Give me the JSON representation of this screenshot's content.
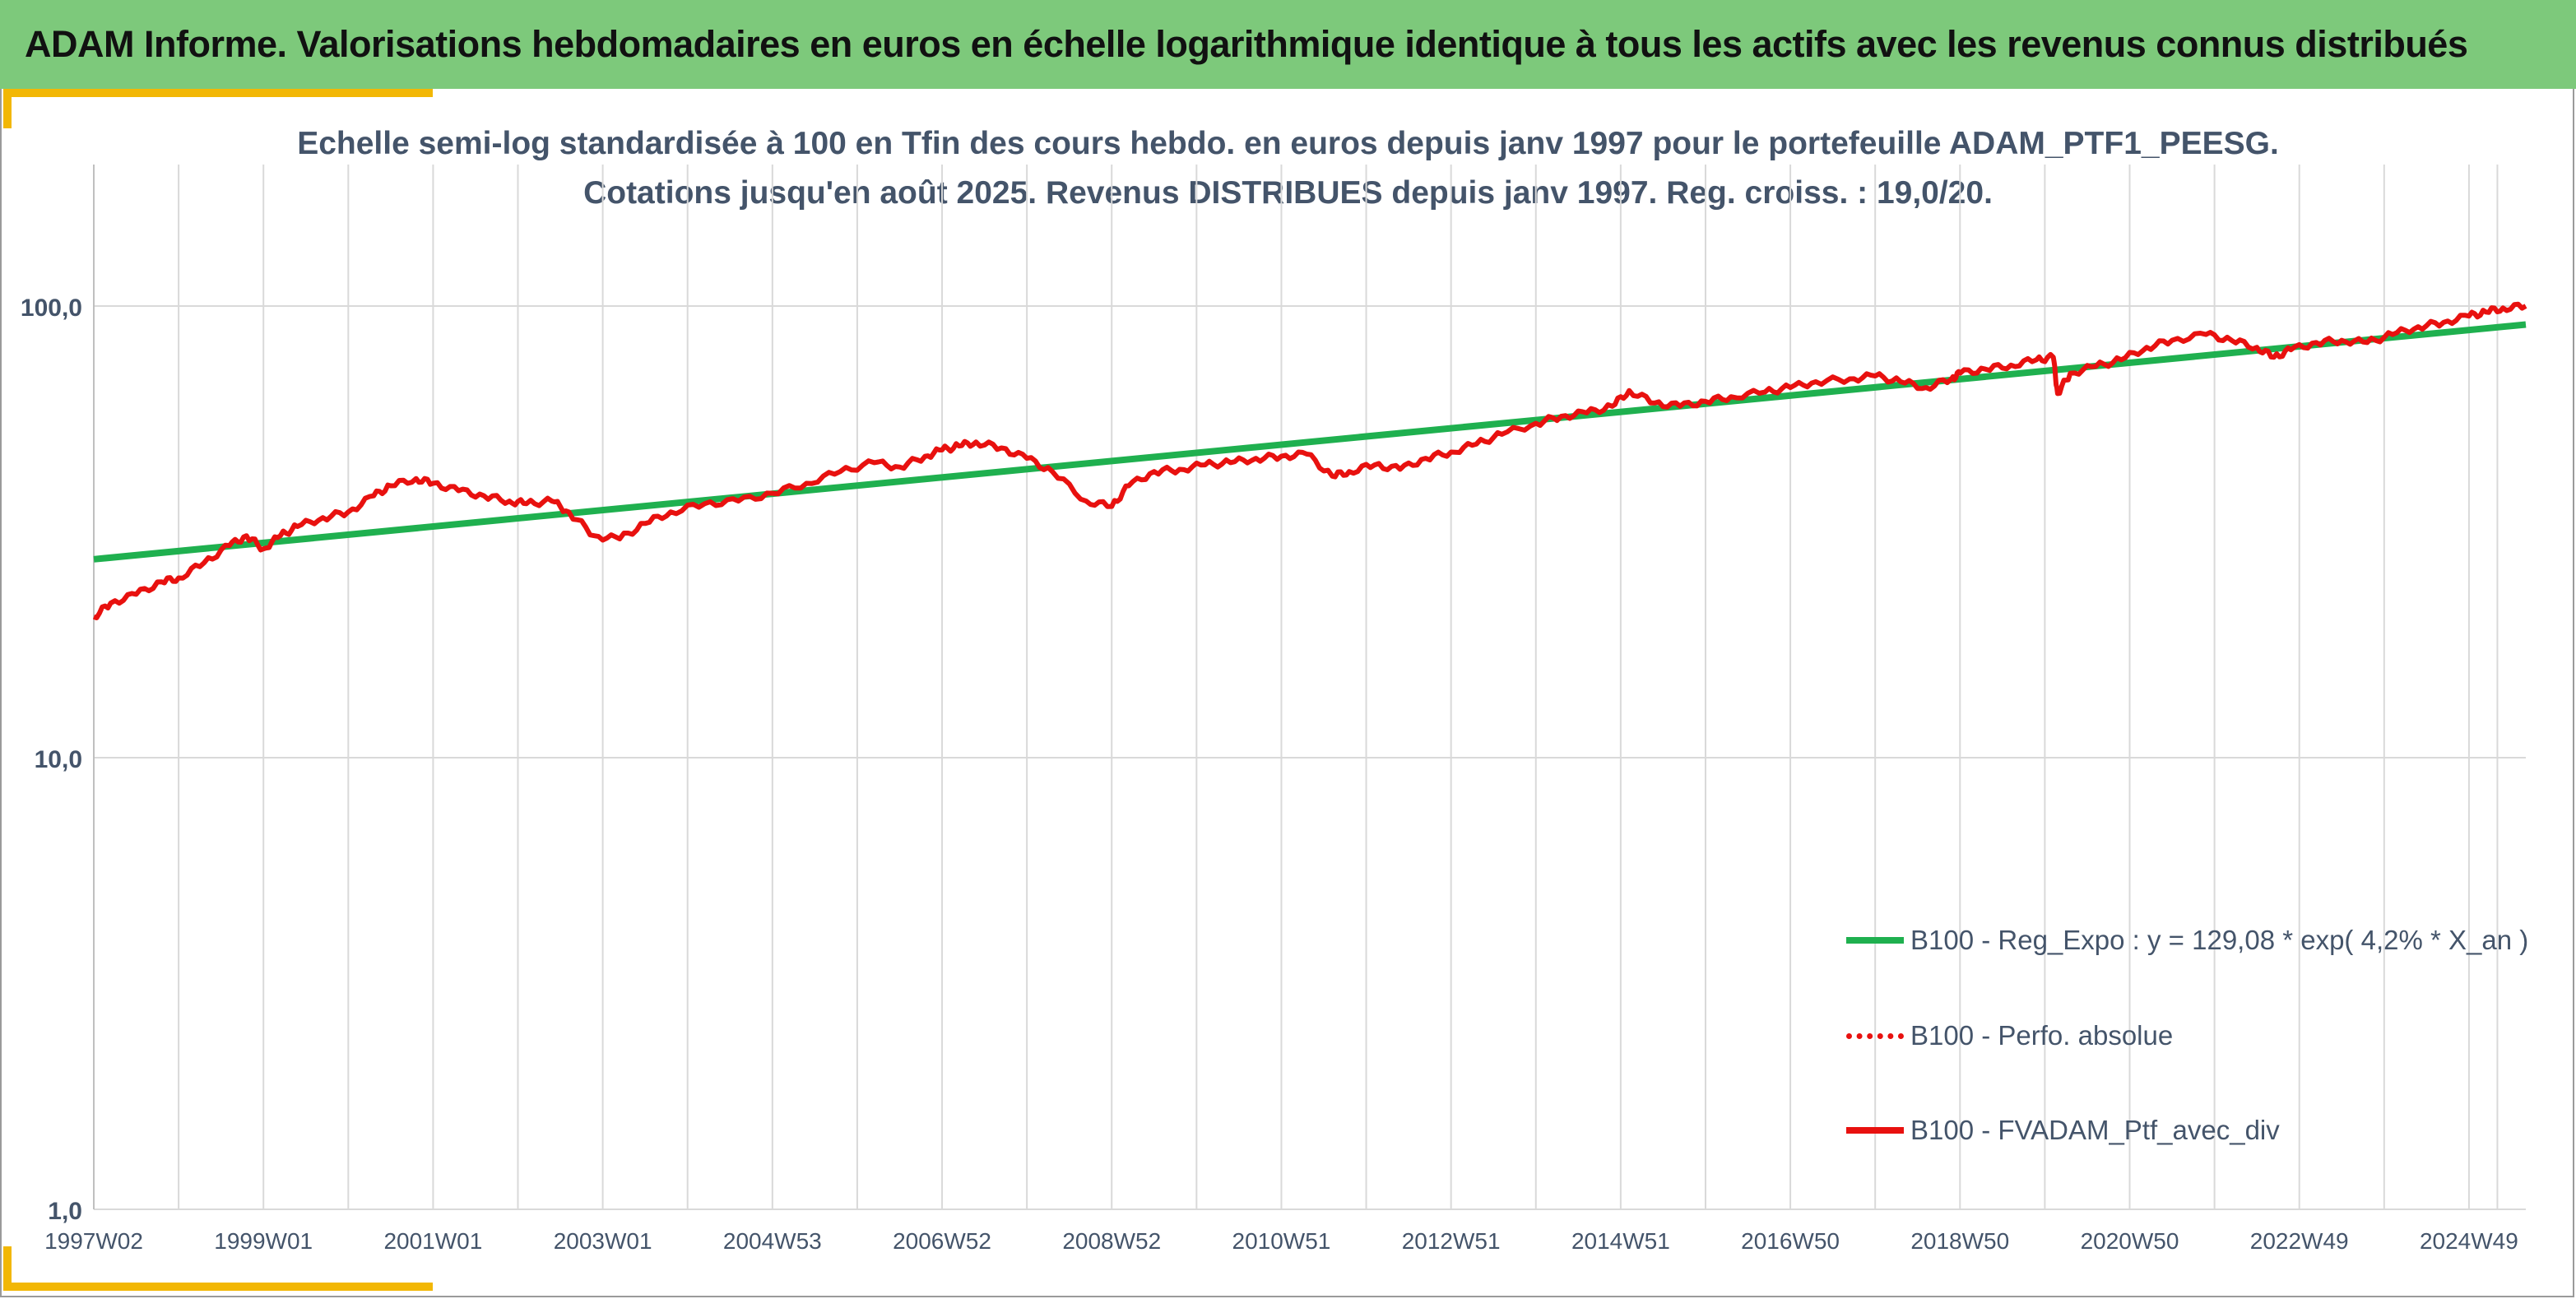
{
  "banner": {
    "title": "ADAM Informe. Valorisations hebdomadaires en euros en échelle logarithmique identique à tous les actifs avec les revenus connus distribués"
  },
  "colors": {
    "banner_bg": "#7dc97b",
    "accent_corner": "#f2b705",
    "regression": "#1fb04f",
    "portfolio": "#e8110f",
    "text": "#44546a",
    "grid": "#d9d9d9"
  },
  "chart_data": {
    "type": "line",
    "title": "Echelle semi-log standardisée à 100 en Tfin des cours hebdo. en euros depuis janv 1997 pour le portefeuille ADAM_PTF1_PEESG.",
    "subtitle": "Cotations jusqu'en août 2025. Revenus DISTRIBUES depuis janv 1997. Reg. croiss. : 19,0/20.",
    "xlabel": "",
    "ylabel": "",
    "yscale": "log",
    "ylim": [
      1,
      200
    ],
    "xlim": [
      1997.0,
      2025.67
    ],
    "grid": true,
    "legend_position": "bottom-right",
    "y_ticks": [
      1.0,
      10.0,
      100.0
    ],
    "y_tick_labels": [
      "1,0",
      "10,0",
      "100,0"
    ],
    "x_ticks": [
      1997.0,
      1999.0,
      2001.0,
      2003.0,
      2005.0,
      2007.0,
      2009.0,
      2011.0,
      2013.0,
      2015.0,
      2017.0,
      2019.0,
      2021.0,
      2023.0,
      2025.0
    ],
    "x_tick_labels": [
      "1997W02",
      "1999W01",
      "2001W01",
      "2003W01",
      "2004W53",
      "2006W52",
      "2008W52",
      "2010W51",
      "2012W51",
      "2014W51",
      "2016W50",
      "2018W50",
      "2020W50",
      "2022W49",
      "2024W49"
    ],
    "series": [
      {
        "name": "B100 - Reg_Expo : y = 129,08 * exp( 4,2% *  X_an )",
        "color": "#1fb04f",
        "style": "solid",
        "x": [
          1997.0,
          2025.67
        ],
        "values": [
          27.5,
          91.0
        ]
      },
      {
        "name": "B100 - Perfo. absolue",
        "color": "#e8110f",
        "style": "dotted",
        "x": [],
        "values": []
      },
      {
        "name": "B100 - FVADAM_Ptf_avec_div",
        "color": "#e8110f",
        "style": "solid",
        "x": [
          1997.0,
          1997.2,
          1997.5,
          1997.8,
          1998.0,
          1998.3,
          1998.6,
          1998.8,
          1999.0,
          1999.2,
          1999.4,
          1999.7,
          2000.0,
          2000.3,
          2000.5,
          2000.8,
          2001.0,
          2001.3,
          2001.6,
          2001.9,
          2002.1,
          2002.4,
          2002.6,
          2002.9,
          2003.2,
          2003.5,
          2003.8,
          2004.2,
          2004.6,
          2005.0,
          2005.4,
          2005.8,
          2006.2,
          2006.5,
          2006.8,
          2007.0,
          2007.2,
          2007.4,
          2007.7,
          2008.0,
          2008.3,
          2008.7,
          2009.0,
          2009.2,
          2009.5,
          2009.8,
          2010.1,
          2010.4,
          2010.7,
          2011.0,
          2011.3,
          2011.6,
          2011.8,
          2012.1,
          2012.4,
          2012.7,
          2013.0,
          2013.3,
          2013.6,
          2014.0,
          2014.3,
          2014.6,
          2014.9,
          2015.1,
          2015.4,
          2015.7,
          2016.0,
          2016.3,
          2016.7,
          2017.0,
          2017.3,
          2017.7,
          2018.0,
          2018.3,
          2018.6,
          2018.9,
          2019.0,
          2019.3,
          2019.6,
          2019.9,
          2020.1,
          2020.15,
          2020.3,
          2020.6,
          2020.9,
          2021.2,
          2021.5,
          2021.9,
          2022.2,
          2022.5,
          2022.7,
          2022.9,
          2023.2,
          2023.5,
          2023.8,
          2024.1,
          2024.4,
          2024.7,
          2025.0,
          2025.2,
          2025.4,
          2025.67
        ],
        "values": [
          20.5,
          22.0,
          23.0,
          24.5,
          25.0,
          27.0,
          29.5,
          31.0,
          29.0,
          31.0,
          32.5,
          34.0,
          35.0,
          38.0,
          40.0,
          41.5,
          40.5,
          39.0,
          38.0,
          37.0,
          36.5,
          37.0,
          35.0,
          31.0,
          30.5,
          33.0,
          35.0,
          36.5,
          37.0,
          38.5,
          40.5,
          43.0,
          45.0,
          44.0,
          46.5,
          48.0,
          49.0,
          50.0,
          48.5,
          46.0,
          43.0,
          37.0,
          36.0,
          40.0,
          43.0,
          43.5,
          44.5,
          45.0,
          46.0,
          46.5,
          47.0,
          42.0,
          43.0,
          44.5,
          43.5,
          46.0,
          47.5,
          49.5,
          52.0,
          55.0,
          57.0,
          58.0,
          60.0,
          65.0,
          61.0,
          60.0,
          61.5,
          63.0,
          64.5,
          66.0,
          68.0,
          69.0,
          70.0,
          68.0,
          66.0,
          69.0,
          71.0,
          72.5,
          74.0,
          76.0,
          77.0,
          64.0,
          71.0,
          73.5,
          76.0,
          81.0,
          84.0,
          86.5,
          84.0,
          81.0,
          77.0,
          80.0,
          83.0,
          84.0,
          83.0,
          86.5,
          90.0,
          92.0,
          95.0,
          97.0,
          99.0,
          100.0
        ]
      }
    ]
  }
}
